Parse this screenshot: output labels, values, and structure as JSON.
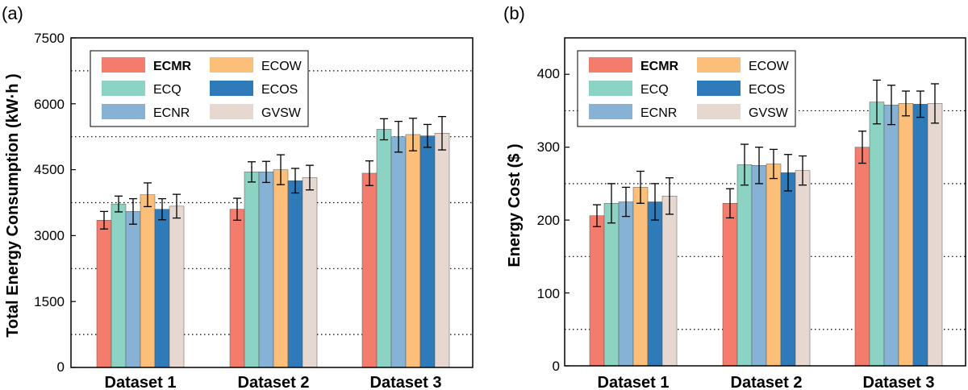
{
  "colors": {
    "ECMR": "#f47c6c",
    "ECQ": "#8dd3c4",
    "ECNR": "#86b2d6",
    "ECOW": "#fbbf79",
    "ECOS": "#2f7ab8",
    "GVSW": "#e6d8d0"
  },
  "chart_data": [
    {
      "panel_label": "(a)",
      "type": "bar",
      "ylabel": "Total Energy Consumption (kW·h )",
      "ylim": [
        0,
        7500
      ],
      "yticks": [
        "0",
        "1500",
        "3000",
        "4500",
        "6000",
        "7500"
      ],
      "ytick_values": [
        0,
        1500,
        3000,
        4500,
        6000,
        7500
      ],
      "minor_grid": [
        750,
        2250,
        3750,
        5250,
        6750
      ],
      "categories": [
        "Dataset 1",
        "Dataset 2",
        "Dataset 3"
      ],
      "legend_position": "top-left",
      "series": [
        {
          "name": "ECMR",
          "values": [
            3350,
            3600,
            4420
          ],
          "errors": [
            200,
            250,
            280
          ]
        },
        {
          "name": "ECQ",
          "values": [
            3720,
            4450,
            5420
          ],
          "errors": [
            180,
            230,
            240
          ]
        },
        {
          "name": "ECNR",
          "values": [
            3550,
            4450,
            5250
          ],
          "errors": [
            290,
            240,
            350
          ]
        },
        {
          "name": "ECOW",
          "values": [
            3930,
            4500,
            5300
          ],
          "errors": [
            270,
            340,
            370
          ]
        },
        {
          "name": "ECOS",
          "values": [
            3600,
            4250,
            5270
          ],
          "errors": [
            240,
            280,
            260
          ]
        },
        {
          "name": "GVSW",
          "values": [
            3670,
            4320,
            5330
          ],
          "errors": [
            270,
            280,
            380
          ]
        }
      ]
    },
    {
      "panel_label": "(b)",
      "type": "bar",
      "ylabel": "Energy Cost ($ )",
      "ylim": [
        0,
        450
      ],
      "yticks": [
        "0",
        "100",
        "200",
        "300",
        "400"
      ],
      "ytick_values": [
        0,
        100,
        200,
        300,
        400
      ],
      "minor_grid": [
        50,
        150,
        250,
        350
      ],
      "categories": [
        "Dataset 1",
        "Dataset 2",
        "Dataset 3"
      ],
      "legend_position": "top-left",
      "series": [
        {
          "name": "ECMR",
          "values": [
            206,
            223,
            300
          ],
          "errors": [
            15,
            20,
            22
          ]
        },
        {
          "name": "ECQ",
          "values": [
            223,
            276,
            362
          ],
          "errors": [
            27,
            28,
            30
          ]
        },
        {
          "name": "ECNR",
          "values": [
            225,
            275,
            358
          ],
          "errors": [
            20,
            25,
            27
          ]
        },
        {
          "name": "ECOW",
          "values": [
            245,
            277,
            360
          ],
          "errors": [
            22,
            20,
            17
          ]
        },
        {
          "name": "ECOS",
          "values": [
            225,
            265,
            359
          ],
          "errors": [
            25,
            25,
            18
          ]
        },
        {
          "name": "GVSW",
          "values": [
            233,
            268,
            360
          ],
          "errors": [
            25,
            20,
            27
          ]
        }
      ]
    }
  ],
  "legend_order": [
    "ECMR",
    "ECOW",
    "ECQ",
    "ECOS",
    "ECNR",
    "GVSW"
  ]
}
